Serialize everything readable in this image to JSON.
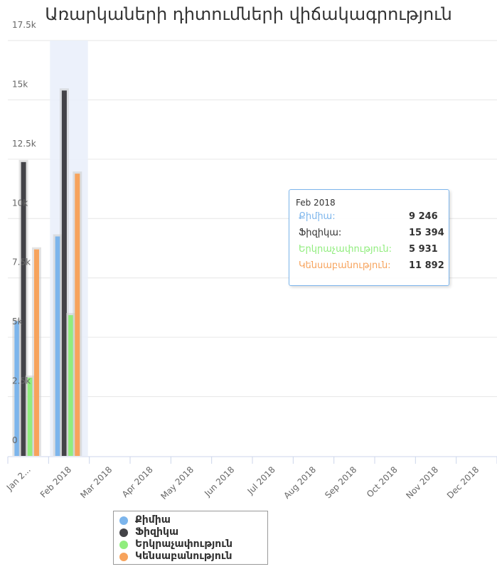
{
  "chart_data": {
    "type": "bar",
    "title": "Առարկաների դիտումների վիճակագրություն",
    "categories": [
      "Jan 2...",
      "Feb 2018",
      "Mar 2018",
      "Apr 2018",
      "May 2018",
      "Jun 2018",
      "Jul 2018",
      "Aug 2018",
      "Sep 2018",
      "Oct 2018",
      "Nov 2018",
      "Dec 2018"
    ],
    "series": [
      {
        "name": "Քիմիա",
        "color": "#7cb5ec",
        "values": [
          5680,
          9246,
          null,
          null,
          null,
          null,
          null,
          null,
          null,
          null,
          null,
          null
        ]
      },
      {
        "name": "Ֆիզիկա",
        "color": "#434348",
        "values": [
          12380,
          15394,
          null,
          null,
          null,
          null,
          null,
          null,
          null,
          null,
          null,
          null
        ]
      },
      {
        "name": "Երկրաչափություն",
        "color": "#90ed7d",
        "values": [
          3300,
          5931,
          null,
          null,
          null,
          null,
          null,
          null,
          null,
          null,
          null,
          null
        ]
      },
      {
        "name": "Կենսաբանություն",
        "color": "#f7a35c",
        "values": [
          8700,
          11892,
          null,
          null,
          null,
          null,
          null,
          null,
          null,
          null,
          null,
          null
        ]
      }
    ],
    "yticks": [
      "0",
      "2.5k",
      "5k",
      "7.5k",
      "10k",
      "12.5k",
      "15k",
      "17.5k"
    ],
    "ylim": [
      0,
      17500
    ],
    "highlighted_category": "Feb 2018",
    "grid": true,
    "legend_position": "bottom-left"
  },
  "tooltip": {
    "header": "Feb 2018",
    "rows": [
      {
        "name": "Քիմիա:",
        "value": "9 246",
        "color": "#7cb5ec"
      },
      {
        "name": "Ֆիզիկա:",
        "value": "15 394",
        "color": "#333333"
      },
      {
        "name": "Երկրաչափություն:",
        "value": "5 931",
        "color": "#90ed7d"
      },
      {
        "name": "Կենսաբանություն:",
        "value": "11 892",
        "color": "#f7a35c"
      }
    ]
  },
  "legend": {
    "items": [
      {
        "label": "Քիմիա",
        "color": "#7cb5ec"
      },
      {
        "label": "Ֆիզիկա",
        "color": "#434348"
      },
      {
        "label": "Երկրաչափություն",
        "color": "#90ed7d"
      },
      {
        "label": "Կենսաբանություն",
        "color": "#f7a35c"
      }
    ]
  }
}
